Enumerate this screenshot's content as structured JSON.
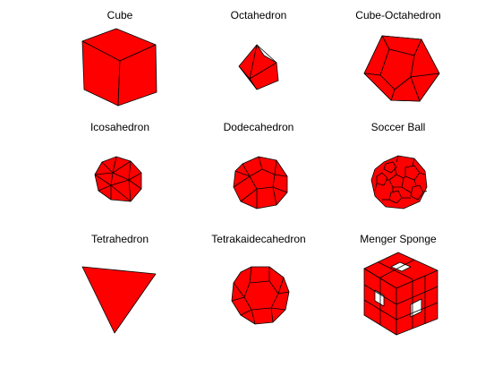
{
  "colors": {
    "background": "#ffffff",
    "face": "#ff0000",
    "edge": "#000000"
  },
  "solids": [
    {
      "id": "cube",
      "label": "Cube"
    },
    {
      "id": "octahedron",
      "label": "Octahedron"
    },
    {
      "id": "cube-octahedron",
      "label": "Cube-Octahedron"
    },
    {
      "id": "icosahedron",
      "label": "Icosahedron"
    },
    {
      "id": "dodecahedron",
      "label": "Dodecahedron"
    },
    {
      "id": "soccer-ball",
      "label": "Soccer Ball"
    },
    {
      "id": "tetrahedron",
      "label": "Tetrahedron"
    },
    {
      "id": "tetrakaidecahedron",
      "label": "Tetrakaidecahedron"
    },
    {
      "id": "menger-sponge",
      "label": "Menger Sponge"
    }
  ]
}
